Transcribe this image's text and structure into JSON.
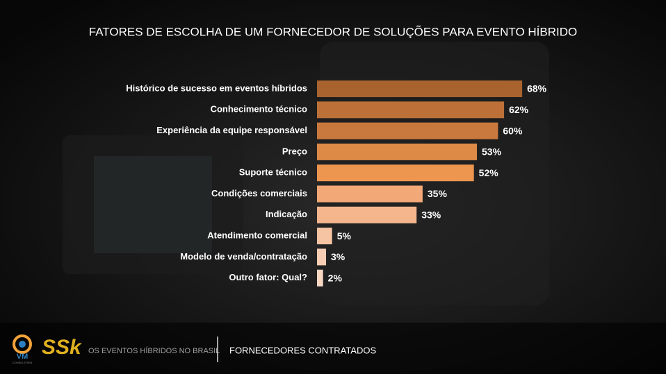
{
  "chart_data": {
    "type": "hbar",
    "title": "FATORES DE ESCOLHA DE UM FORNECEDOR DE SOLUÇÕES PARA EVENTO HÍBRIDO",
    "categories": [
      "Histórico de sucesso em eventos híbridos",
      "Conhecimento técnico",
      "Experiência da equipe responsável",
      "Preço",
      "Suporte técnico",
      "Condições comerciais",
      "Indicação",
      "Atendimento comercial",
      "Modelo de venda/contratação",
      "Outro fator: Qual?"
    ],
    "values": [
      68,
      62,
      60,
      53,
      52,
      35,
      33,
      5,
      3,
      2
    ],
    "value_labels": [
      "68%",
      "62%",
      "60%",
      "53%",
      "52%",
      "35%",
      "33%",
      "5%",
      "3%",
      "2%"
    ],
    "colors": [
      "#a8632f",
      "#bd7138",
      "#c9793d",
      "#de8a47",
      "#ec9650",
      "#f2a877",
      "#f5b68e",
      "#f6c3a3",
      "#f7cdb3",
      "#f8d7c2"
    ]
  },
  "footer": {
    "logo_left": "VM",
    "logo_left_sub": "CONSULTORIA",
    "logo_right": "SSk",
    "section": "OS EVENTOS HÍBRIDOS NO BRASIL",
    "topic": "FORNECEDORES CONTRATADOS"
  }
}
